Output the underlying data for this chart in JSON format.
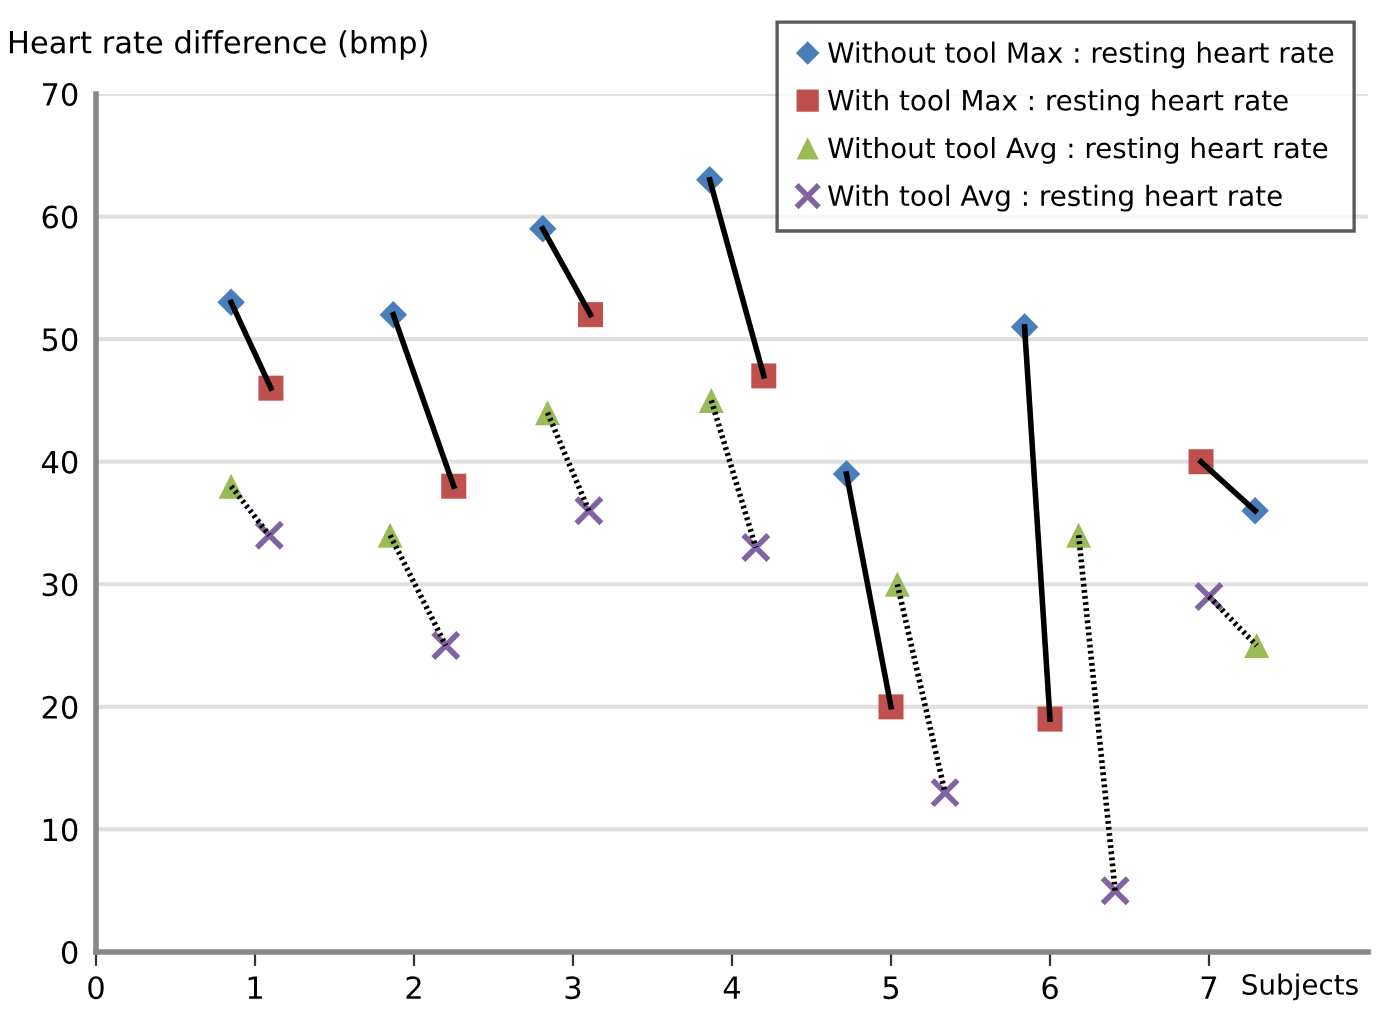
{
  "chart_data": {
    "type": "scatter",
    "ylabel": "Heart rate difference (bmp)",
    "xlabel": "Subjects",
    "xlim": [
      0,
      8
    ],
    "xticks": [
      0,
      1,
      2,
      3,
      4,
      5,
      6,
      7
    ],
    "ylim": [
      0,
      70
    ],
    "yticks": [
      0,
      10,
      20,
      30,
      40,
      50,
      60,
      70
    ],
    "grid": "y",
    "legend": "top right",
    "series": [
      {
        "type": "line",
        "color": "#000000",
        "line_style": "solid",
        "marker": "none",
        "x": [
          0.85,
          1.1
        ],
        "values": [
          53,
          46
        ]
      },
      {
        "type": "line",
        "color": "#000000",
        "line_style": "solid",
        "marker": "none",
        "x": [
          1.87,
          2.25
        ],
        "values": [
          52,
          38
        ]
      },
      {
        "type": "line",
        "color": "#000000",
        "line_style": "solid",
        "marker": "none",
        "x": [
          2.81,
          3.11
        ],
        "values": [
          59,
          52
        ]
      },
      {
        "type": "line",
        "color": "#000000",
        "line_style": "solid",
        "marker": "none",
        "x": [
          3.86,
          4.2
        ],
        "values": [
          63,
          47
        ]
      },
      {
        "type": "line",
        "color": "#000000",
        "line_style": "solid",
        "marker": "none",
        "x": [
          4.72,
          5.0
        ],
        "values": [
          39,
          20
        ]
      },
      {
        "type": "line",
        "color": "#000000",
        "line_style": "solid",
        "marker": "none",
        "x": [
          5.84,
          6.0
        ],
        "values": [
          51,
          19
        ]
      },
      {
        "type": "line",
        "color": "#000000",
        "line_style": "solid",
        "marker": "none",
        "x": [
          6.95,
          7.29
        ],
        "values": [
          40,
          36
        ]
      },
      {
        "type": "line",
        "color": "#000000",
        "line_style": "dotted",
        "marker": "none",
        "x": [
          0.85,
          1.09
        ],
        "values": [
          38,
          34
        ]
      },
      {
        "type": "line",
        "color": "#000000",
        "line_style": "dotted",
        "marker": "none",
        "x": [
          1.85,
          2.2
        ],
        "values": [
          34,
          25
        ]
      },
      {
        "type": "line",
        "color": "#000000",
        "line_style": "dotted",
        "marker": "none",
        "x": [
          2.84,
          3.1
        ],
        "values": [
          44,
          36
        ]
      },
      {
        "type": "line",
        "color": "#000000",
        "line_style": "dotted",
        "marker": "none",
        "x": [
          3.87,
          4.15
        ],
        "values": [
          45,
          33
        ]
      },
      {
        "type": "line",
        "color": "#000000",
        "line_style": "dotted",
        "marker": "none",
        "x": [
          5.04,
          5.34
        ],
        "values": [
          30,
          13
        ]
      },
      {
        "type": "line",
        "color": "#000000",
        "line_style": "dotted",
        "marker": "none",
        "x": [
          6.18,
          6.41
        ],
        "values": [
          34,
          5
        ]
      },
      {
        "type": "line",
        "color": "#000000",
        "line_style": "dotted",
        "marker": "none",
        "x": [
          7.0,
          7.3
        ],
        "values": [
          29,
          25
        ]
      },
      {
        "name": "Without tool Max : resting heart rate",
        "color": "#4a7ebb",
        "marker": "diamond",
        "x": [
          0.85,
          1.87,
          2.81,
          3.86,
          4.72,
          5.84,
          7.29
        ],
        "values": [
          53,
          52,
          59,
          63,
          39,
          51,
          36
        ]
      },
      {
        "name": "With tool Max : resting heart rate",
        "color": "#c0504d",
        "marker": "square",
        "x": [
          1.1,
          2.25,
          3.11,
          4.2,
          5.0,
          6.0,
          6.95
        ],
        "values": [
          46,
          38,
          52,
          47,
          20,
          19,
          40
        ]
      },
      {
        "name": "Without tool Avg : resting heart rate",
        "color": "#9bbb59",
        "marker": "triangle",
        "x": [
          0.85,
          1.85,
          2.84,
          3.87,
          5.04,
          6.18,
          7.3
        ],
        "values": [
          38,
          34,
          44,
          45,
          30,
          34,
          25
        ]
      },
      {
        "name": "With tool Avg : resting heart rate",
        "color": "#8064a2",
        "marker": "cross",
        "x": [
          1.09,
          2.2,
          3.1,
          4.15,
          5.34,
          6.41,
          7.0
        ],
        "values": [
          34,
          25,
          36,
          33,
          13,
          5,
          29
        ]
      }
    ]
  }
}
